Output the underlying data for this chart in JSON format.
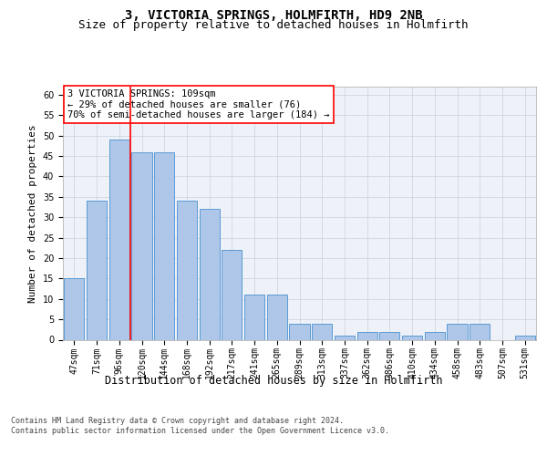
{
  "title1": "3, VICTORIA SPRINGS, HOLMFIRTH, HD9 2NB",
  "title2": "Size of property relative to detached houses in Holmfirth",
  "xlabel": "Distribution of detached houses by size in Holmfirth",
  "ylabel": "Number of detached properties",
  "categories": [
    "47sqm",
    "71sqm",
    "96sqm",
    "120sqm",
    "144sqm",
    "168sqm",
    "192sqm",
    "217sqm",
    "241sqm",
    "265sqm",
    "289sqm",
    "313sqm",
    "337sqm",
    "362sqm",
    "386sqm",
    "410sqm",
    "434sqm",
    "458sqm",
    "483sqm",
    "507sqm",
    "531sqm"
  ],
  "values": [
    15,
    34,
    49,
    46,
    46,
    34,
    32,
    22,
    11,
    11,
    4,
    4,
    1,
    2,
    2,
    1,
    2,
    4,
    4,
    0,
    1
  ],
  "bar_color": "#aec6e8",
  "bar_edgecolor": "#5b9bd5",
  "vline_x": 2.5,
  "vline_color": "red",
  "annotation_text": "3 VICTORIA SPRINGS: 109sqm\n← 29% of detached houses are smaller (76)\n70% of semi-detached houses are larger (184) →",
  "annotation_box_color": "white",
  "annotation_box_edgecolor": "red",
  "ylim": [
    0,
    62
  ],
  "yticks": [
    0,
    5,
    10,
    15,
    20,
    25,
    30,
    35,
    40,
    45,
    50,
    55,
    60
  ],
  "grid_color": "#c8d0dc",
  "bg_color": "#eef2f8",
  "footer": "Contains HM Land Registry data © Crown copyright and database right 2024.\nContains public sector information licensed under the Open Government Licence v3.0.",
  "title1_fontsize": 10,
  "title2_fontsize": 9,
  "xlabel_fontsize": 8.5,
  "ylabel_fontsize": 8,
  "tick_fontsize": 7,
  "annotation_fontsize": 7.5,
  "footer_fontsize": 6
}
